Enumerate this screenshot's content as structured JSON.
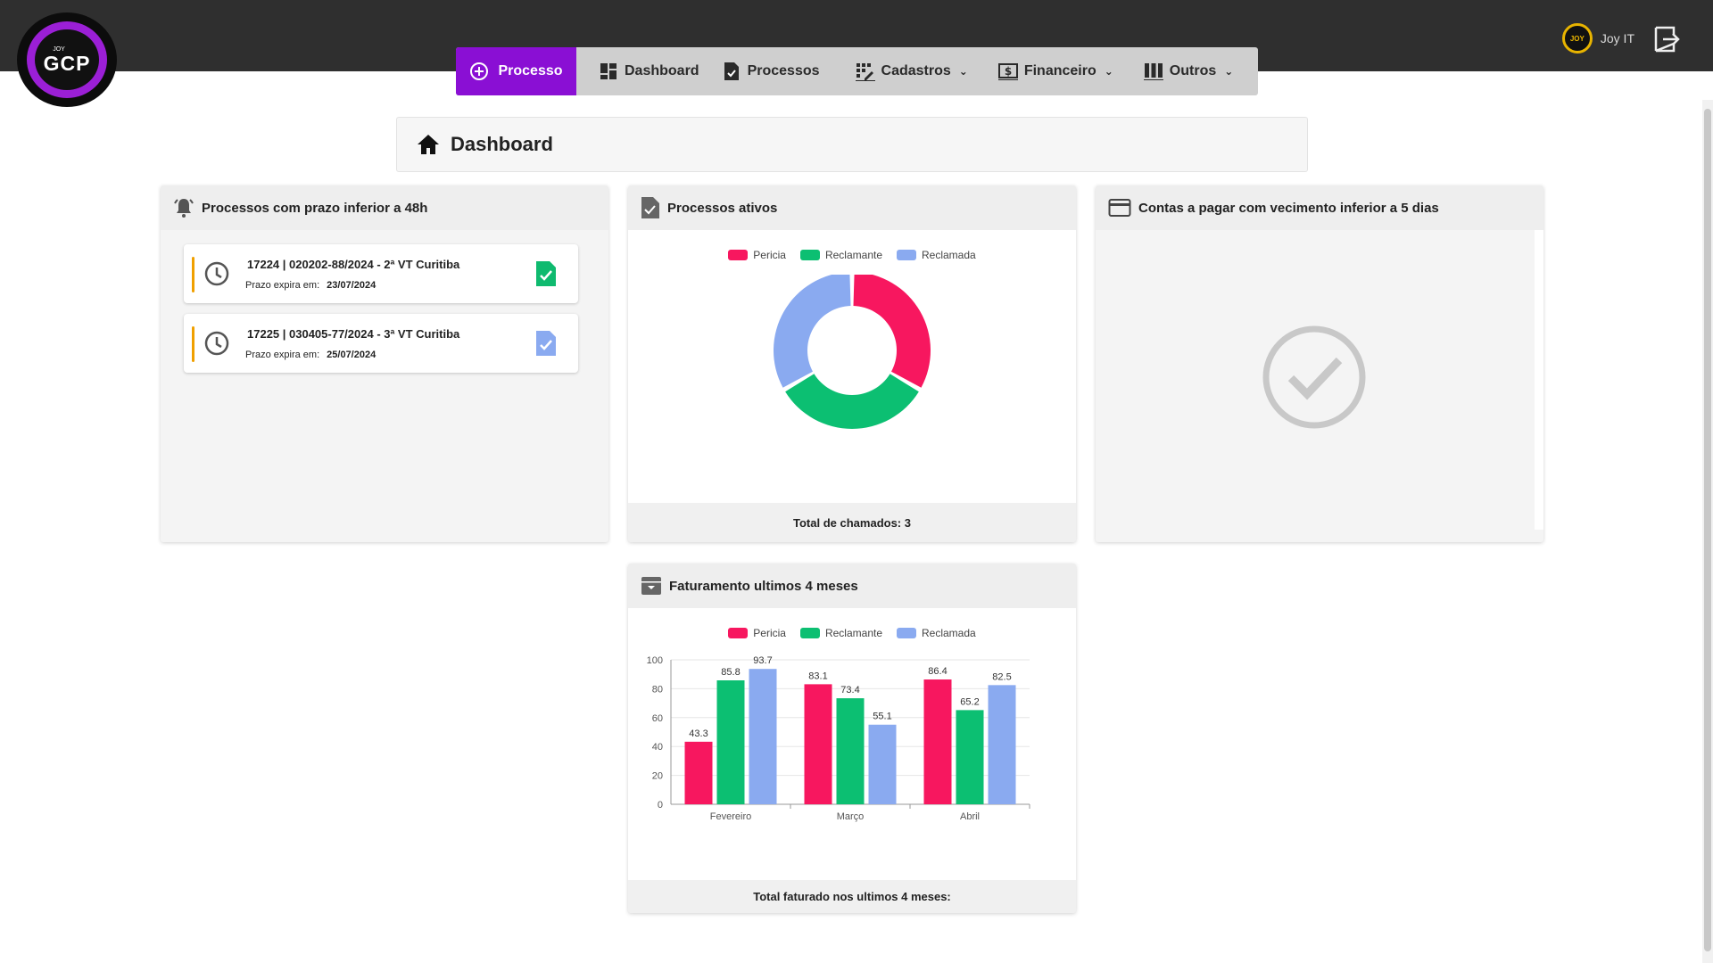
{
  "brand": {
    "small": "JOY",
    "big": "GCP"
  },
  "nav": {
    "new_label": "Processo",
    "items": [
      {
        "label": "Dashboard",
        "icon": "dashboard-icon",
        "has_dropdown": false
      },
      {
        "label": "Processos",
        "icon": "document-check-icon",
        "has_dropdown": false
      },
      {
        "label": "Cadastros",
        "icon": "grid-edit-icon",
        "has_dropdown": true
      },
      {
        "label": "Financeiro",
        "icon": "dollar-icon",
        "has_dropdown": true
      },
      {
        "label": "Outros",
        "icon": "columns-icon",
        "has_dropdown": true
      }
    ]
  },
  "user": {
    "name": "Joy IT",
    "avatar_text": "JOY"
  },
  "page": {
    "title": "Dashboard"
  },
  "deadline_card": {
    "title": "Processos com prazo inferior a 48h",
    "expire_label": "Prazo expira em:",
    "items": [
      {
        "title": "17224 | 020202-88/2024 - 2ª VT Curitiba",
        "date": "23/07/2024",
        "doc_color": "#0fba6f"
      },
      {
        "title": "17225 | 030405-77/2024 - 3ª VT Curitiba",
        "date": "25/07/2024",
        "doc_color": "#8aaaf0"
      }
    ]
  },
  "active_card": {
    "title": "Processos ativos",
    "footer": "Total de chamados: 3",
    "legend": [
      {
        "label": "Pericia",
        "color": "#f7175f"
      },
      {
        "label": "Reclamante",
        "color": "#0cbf72"
      },
      {
        "label": "Reclamada",
        "color": "#8aaaf0"
      }
    ],
    "donut_values": [
      1,
      1,
      1
    ]
  },
  "bills_card": {
    "title": "Contas a pagar com vecimento inferior a 5 dias"
  },
  "revenue_card": {
    "title": "Faturamento ultimos 4 meses",
    "footer": "Total faturado nos ultimos 4 meses:"
  },
  "chart_data": {
    "type": "bar",
    "categories": [
      "Fevereiro",
      "Março",
      "Abril"
    ],
    "series": [
      {
        "name": "Pericia",
        "color": "#f7175f",
        "values": [
          43.3,
          83.1,
          86.4
        ]
      },
      {
        "name": "Reclamante",
        "color": "#0cbf72",
        "values": [
          85.8,
          73.4,
          65.2
        ]
      },
      {
        "name": "Reclamada",
        "color": "#8aaaf0",
        "values": [
          93.7,
          55.1,
          82.5
        ]
      }
    ],
    "ylim": [
      0,
      100
    ],
    "yticks": [
      0,
      20,
      40,
      60,
      80,
      100
    ],
    "title": "",
    "xlabel": "",
    "ylabel": "",
    "grid": "horizontal",
    "legend_position": "top"
  }
}
